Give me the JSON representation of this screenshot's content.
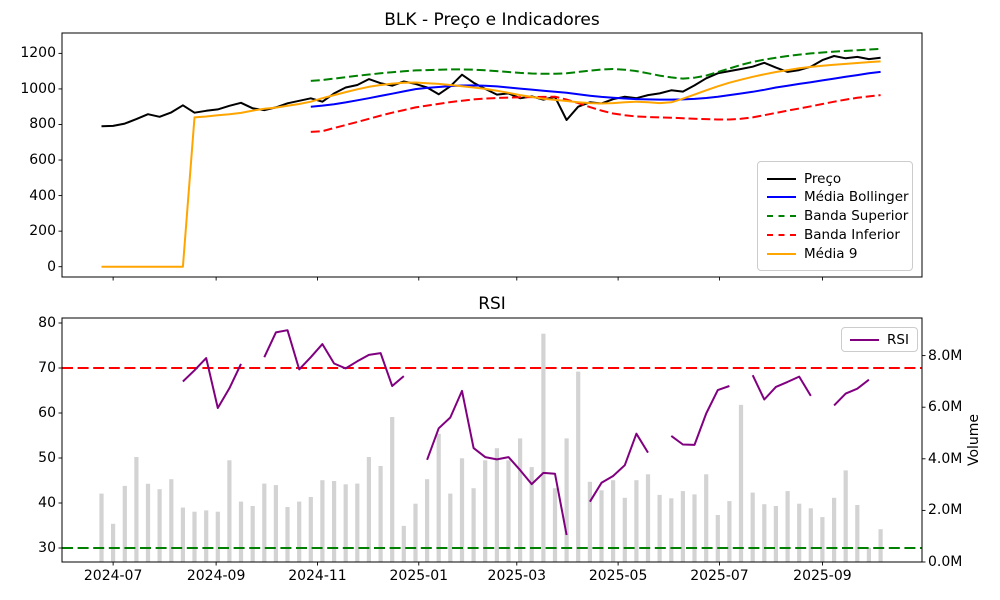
{
  "figure": {
    "background": "#ffffff"
  },
  "chart_data": [
    {
      "type": "line",
      "title": "BLK - Preço e Indicadores",
      "x_dates": [
        "2024-06-24",
        "2024-07-01",
        "2024-07-08",
        "2024-07-15",
        "2024-07-22",
        "2024-07-29",
        "2024-08-05",
        "2024-08-12",
        "2024-08-19",
        "2024-08-26",
        "2024-09-02",
        "2024-09-09",
        "2024-09-16",
        "2024-09-23",
        "2024-09-30",
        "2024-10-07",
        "2024-10-14",
        "2024-10-21",
        "2024-10-28",
        "2024-11-04",
        "2024-11-11",
        "2024-11-18",
        "2024-11-25",
        "2024-12-02",
        "2024-12-09",
        "2024-12-16",
        "2024-12-23",
        "2024-12-30",
        "2025-01-06",
        "2025-01-13",
        "2025-01-20",
        "2025-01-27",
        "2025-02-03",
        "2025-02-10",
        "2025-02-17",
        "2025-02-24",
        "2025-03-03",
        "2025-03-10",
        "2025-03-17",
        "2025-03-24",
        "2025-03-31",
        "2025-04-07",
        "2025-04-14",
        "2025-04-21",
        "2025-04-28",
        "2025-05-05",
        "2025-05-12",
        "2025-05-19",
        "2025-05-26",
        "2025-06-02",
        "2025-06-09",
        "2025-06-16",
        "2025-06-23",
        "2025-06-30",
        "2025-07-07",
        "2025-07-14",
        "2025-07-21",
        "2025-07-28",
        "2025-08-04",
        "2025-08-11",
        "2025-08-18",
        "2025-08-25",
        "2025-09-01",
        "2025-09-08",
        "2025-09-15",
        "2025-09-22",
        "2025-09-29",
        "2025-10-06"
      ],
      "xticks": [
        {
          "label": "2024-07",
          "date": "2024-07-01"
        },
        {
          "label": "2024-09",
          "date": "2024-09-01"
        },
        {
          "label": "2024-11",
          "date": "2024-11-01"
        },
        {
          "label": "2025-01",
          "date": "2025-01-01"
        },
        {
          "label": "2025-03",
          "date": "2025-03-01"
        },
        {
          "label": "2025-05",
          "date": "2025-05-01"
        },
        {
          "label": "2025-07",
          "date": "2025-07-01"
        },
        {
          "label": "2025-09",
          "date": "2025-09-01"
        }
      ],
      "yticks": [
        0,
        200,
        400,
        600,
        800,
        1000,
        1200
      ],
      "legend_position": "lower right",
      "series": [
        {
          "name": "Preço",
          "color": "#000000",
          "dash": false,
          "values": [
            790,
            792,
            805,
            830,
            858,
            843,
            868,
            908,
            866,
            877,
            885,
            905,
            922,
            891,
            881,
            896,
            919,
            933,
            947,
            928,
            975,
            1008,
            1022,
            1055,
            1032,
            1018,
            1042,
            1028,
            1008,
            970,
            1015,
            1080,
            1035,
            1000,
            968,
            975,
            948,
            958,
            940,
            955,
            825,
            900,
            925,
            918,
            942,
            956,
            948,
            965,
            975,
            992,
            985,
            1020,
            1060,
            1088,
            1100,
            1112,
            1125,
            1147,
            1120,
            1096,
            1106,
            1125,
            1162,
            1185,
            1172,
            1180,
            1168,
            1175
          ]
        },
        {
          "name": "Média Bollinger",
          "color": "#0000ff",
          "dash": false,
          "values": [
            null,
            null,
            null,
            null,
            null,
            null,
            null,
            null,
            null,
            null,
            null,
            null,
            null,
            null,
            null,
            null,
            null,
            null,
            900,
            906,
            914,
            924,
            936,
            948,
            961,
            973,
            986,
            999,
            1006,
            1011,
            1016,
            1019,
            1020,
            1018,
            1014,
            1008,
            1002,
            996,
            990,
            984,
            978,
            970,
            962,
            955,
            950,
            946,
            943,
            941,
            940,
            940,
            941,
            944,
            949,
            956,
            965,
            974,
            984,
            995,
            1008,
            1018,
            1028,
            1038,
            1048,
            1058,
            1068,
            1078,
            1088,
            1096
          ]
        },
        {
          "name": "Banda Superior",
          "color": "#008000",
          "dash": true,
          "values": [
            null,
            null,
            null,
            null,
            null,
            null,
            null,
            null,
            null,
            null,
            null,
            null,
            null,
            null,
            null,
            null,
            null,
            null,
            1045,
            1050,
            1058,
            1066,
            1074,
            1081,
            1088,
            1094,
            1099,
            1104,
            1106,
            1108,
            1110,
            1110,
            1108,
            1105,
            1100,
            1095,
            1090,
            1087,
            1085,
            1085,
            1088,
            1095,
            1103,
            1109,
            1112,
            1108,
            1100,
            1088,
            1075,
            1065,
            1058,
            1063,
            1075,
            1095,
            1115,
            1135,
            1152,
            1165,
            1175,
            1185,
            1193,
            1200,
            1205,
            1210,
            1214,
            1218,
            1222,
            1225
          ]
        },
        {
          "name": "Banda Inferior",
          "color": "#ff0000",
          "dash": true,
          "values": [
            null,
            null,
            null,
            null,
            null,
            null,
            null,
            null,
            null,
            null,
            null,
            null,
            null,
            null,
            null,
            null,
            null,
            null,
            758,
            762,
            780,
            797,
            814,
            832,
            850,
            866,
            881,
            896,
            906,
            916,
            926,
            934,
            941,
            946,
            949,
            951,
            953,
            954,
            955,
            956,
            940,
            920,
            898,
            878,
            862,
            852,
            845,
            842,
            840,
            838,
            835,
            832,
            830,
            828,
            828,
            832,
            840,
            852,
            865,
            878,
            890,
            902,
            915,
            928,
            940,
            950,
            958,
            965
          ]
        },
        {
          "name": "Média 9",
          "color": "#ffa500",
          "dash": false,
          "values": [
            0,
            0,
            0,
            0,
            0,
            0,
            0,
            0,
            840,
            845,
            852,
            858,
            865,
            878,
            888,
            895,
            905,
            915,
            928,
            948,
            965,
            982,
            998,
            1012,
            1022,
            1030,
            1035,
            1036,
            1032,
            1028,
            1022,
            1015,
            1008,
            1000,
            990,
            978,
            965,
            955,
            945,
            938,
            932,
            925,
            920,
            918,
            920,
            925,
            928,
            925,
            920,
            925,
            945,
            968,
            992,
            1015,
            1035,
            1052,
            1068,
            1082,
            1095,
            1106,
            1116,
            1124,
            1130,
            1136,
            1141,
            1146,
            1151,
            1155
          ]
        }
      ]
    },
    {
      "type": "line+bar",
      "title": "RSI",
      "yticks": [
        30,
        40,
        50,
        60,
        70,
        80
      ],
      "legend_position": "upper right",
      "hlines": [
        {
          "value": 70,
          "color": "#ff0000",
          "dash": true
        },
        {
          "value": 30,
          "color": "#008000",
          "dash": true
        }
      ],
      "series": [
        {
          "name": "RSI",
          "color": "#800080",
          "dash": false,
          "values": [
            null,
            null,
            null,
            null,
            null,
            null,
            null,
            67,
            69.5,
            72.2,
            61.1,
            65.5,
            70.9,
            null,
            72.4,
            77.9,
            78.4,
            69.7,
            72.4,
            75.3,
            71,
            69.9,
            71.5,
            72.9,
            73.3,
            66,
            68.2,
            null,
            49.6,
            56.6,
            59,
            64.9,
            52.2,
            50.2,
            49.7,
            50.2,
            47.3,
            44.2,
            46.7,
            46.5,
            32.9,
            null,
            40.3,
            44.5,
            46,
            48.4,
            55.4,
            51.2,
            null,
            54.9,
            53,
            52.9,
            59.9,
            65.1,
            66,
            null,
            68.4,
            63,
            65.8,
            66.9,
            68.1,
            63.8,
            null,
            61.7,
            64.3,
            65.4,
            67.4,
            null
          ]
        }
      ],
      "volume": {
        "label": "Volume",
        "color": "#d3d3d3",
        "unit": "M",
        "yticks_values": [
          0,
          2,
          4,
          6,
          8
        ],
        "yticks_labels": [
          "0.0M",
          "2.0M",
          "4.0M",
          "6.0M",
          "8.0M"
        ],
        "values": [
          2.65,
          1.48,
          2.95,
          4.07,
          3.03,
          2.82,
          3.21,
          2.11,
          1.95,
          2.0,
          1.95,
          3.94,
          2.34,
          2.17,
          3.04,
          2.98,
          2.13,
          2.34,
          2.52,
          3.17,
          3.14,
          3.01,
          3.04,
          4.07,
          3.72,
          5.62,
          1.4,
          2.26,
          3.21,
          4.97,
          2.65,
          4.02,
          2.86,
          3.94,
          4.41,
          3.94,
          4.79,
          3.68,
          8.85,
          2.86,
          4.79,
          7.38,
          3.11,
          2.78,
          3.17,
          2.49,
          3.17,
          3.4,
          2.6,
          2.47,
          2.75,
          2.62,
          3.4,
          1.82,
          2.36,
          6.09,
          2.69,
          2.24,
          2.17,
          2.75,
          2.26,
          2.08,
          1.74,
          2.49,
          3.55,
          2.21,
          0.55,
          1.27
        ]
      }
    }
  ]
}
